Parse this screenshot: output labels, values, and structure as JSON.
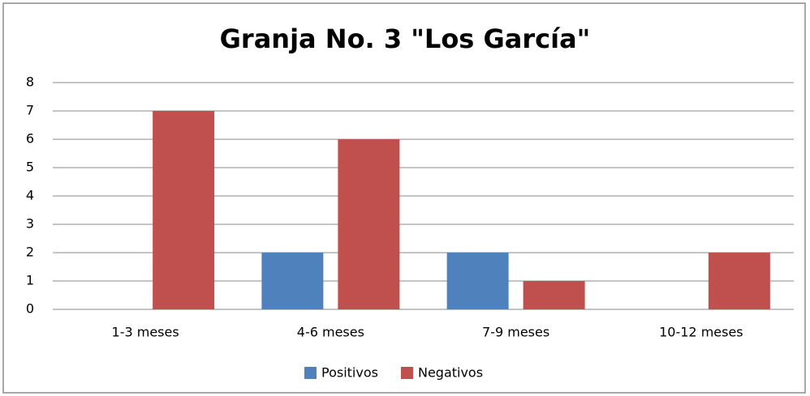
{
  "chart_data": {
    "type": "bar",
    "title": "Granja No. 3 \"Los García\"",
    "categories": [
      "1-3 meses",
      "4-6 meses",
      "7-9 meses",
      "10-12 meses"
    ],
    "series": [
      {
        "name": "Positivos",
        "color": "#4f81bd",
        "values": [
          0,
          2,
          2,
          0
        ]
      },
      {
        "name": "Negativos",
        "color": "#c0504d",
        "values": [
          7,
          6,
          1,
          2
        ]
      }
    ],
    "ylim": [
      0,
      8
    ],
    "yticks": [
      0,
      1,
      2,
      3,
      4,
      5,
      6,
      7,
      8
    ],
    "grid": true,
    "legend": "bottom"
  }
}
